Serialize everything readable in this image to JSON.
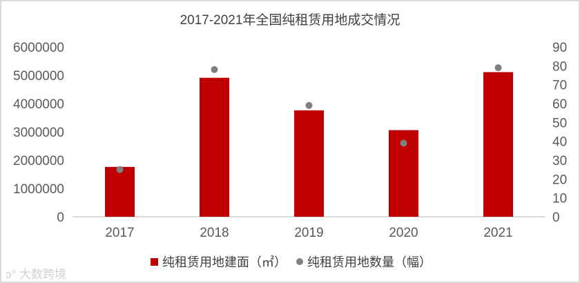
{
  "chart_data": {
    "type": "bar+scatter",
    "title": "2017-2021年全国纯租赁用地成交情况",
    "categories": [
      "2017",
      "2018",
      "2019",
      "2020",
      "2021"
    ],
    "series": [
      {
        "name": "纯租赁用地建面（㎡）",
        "type": "bar",
        "axis": "left",
        "color": "#c00000",
        "values": [
          1760000,
          4910000,
          3760000,
          3060000,
          5110000
        ]
      },
      {
        "name": "纯租赁用地数量（幅）",
        "type": "scatter",
        "axis": "right",
        "color": "#808080",
        "values": [
          25,
          78,
          59,
          39,
          79
        ]
      }
    ],
    "y_left": {
      "range": [
        0,
        6000000
      ],
      "ticks": [
        "0",
        "1000000",
        "2000000",
        "3000000",
        "4000000",
        "5000000",
        "6000000"
      ]
    },
    "y_right": {
      "range": [
        0,
        90
      ],
      "ticks": [
        "0",
        "10",
        "20",
        "30",
        "40",
        "50",
        "60",
        "70",
        "80",
        "90"
      ]
    },
    "grid": false,
    "legend": "bottom"
  },
  "watermark": "大数跨境"
}
